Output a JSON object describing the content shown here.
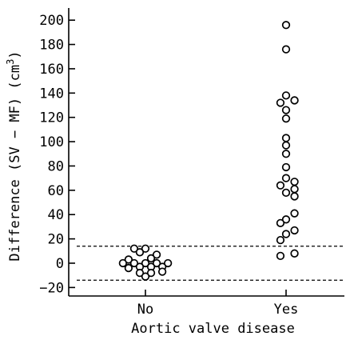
{
  "chart_data": {
    "type": "scatter",
    "title": "",
    "xlabel": "Aortic valve disease",
    "ylabel": "Difference (SV − MF) (cm",
    "ylabel_superscript": "3",
    "ylabel_suffix": ")",
    "categories": [
      "No",
      "Yes"
    ],
    "ylim": [
      -27,
      210
    ],
    "yticks": [
      -20,
      0,
      20,
      40,
      60,
      80,
      100,
      120,
      140,
      160,
      180,
      200
    ],
    "ytick_labels": [
      "−20",
      "0",
      "20",
      "40",
      "60",
      "80",
      "100",
      "120",
      "140",
      "160",
      "180",
      "200"
    ],
    "reference_lines": [
      14,
      -14
    ],
    "grid": false,
    "legend": "none",
    "series": [
      {
        "category": "No",
        "points": [
          {
            "offset": -0.08,
            "value": 12
          },
          {
            "offset": 0.0,
            "value": 12
          },
          {
            "offset": -0.04,
            "value": 9
          },
          {
            "offset": 0.08,
            "value": 7
          },
          {
            "offset": -0.12,
            "value": 3
          },
          {
            "offset": 0.04,
            "value": 4
          },
          {
            "offset": -0.16,
            "value": 0
          },
          {
            "offset": -0.08,
            "value": 0
          },
          {
            "offset": 0.0,
            "value": 0
          },
          {
            "offset": 0.08,
            "value": 0
          },
          {
            "offset": 0.16,
            "value": 0
          },
          {
            "offset": -0.04,
            "value": -3
          },
          {
            "offset": 0.04,
            "value": -3
          },
          {
            "offset": 0.12,
            "value": -3
          },
          {
            "offset": -0.12,
            "value": -4
          },
          {
            "offset": -0.04,
            "value": -8
          },
          {
            "offset": 0.04,
            "value": -8
          },
          {
            "offset": 0.12,
            "value": -7
          },
          {
            "offset": 0.0,
            "value": -11
          }
        ]
      },
      {
        "category": "Yes",
        "points": [
          {
            "offset": 0.0,
            "value": 196
          },
          {
            "offset": 0.0,
            "value": 176
          },
          {
            "offset": 0.0,
            "value": 138
          },
          {
            "offset": 0.06,
            "value": 134
          },
          {
            "offset": -0.04,
            "value": 132
          },
          {
            "offset": 0.0,
            "value": 126
          },
          {
            "offset": 0.0,
            "value": 119
          },
          {
            "offset": 0.0,
            "value": 103
          },
          {
            "offset": 0.0,
            "value": 97
          },
          {
            "offset": 0.0,
            "value": 90
          },
          {
            "offset": 0.0,
            "value": 79
          },
          {
            "offset": 0.0,
            "value": 70
          },
          {
            "offset": 0.06,
            "value": 67
          },
          {
            "offset": -0.04,
            "value": 64
          },
          {
            "offset": 0.06,
            "value": 61
          },
          {
            "offset": 0.0,
            "value": 58
          },
          {
            "offset": 0.06,
            "value": 55
          },
          {
            "offset": 0.06,
            "value": 41
          },
          {
            "offset": 0.0,
            "value": 36
          },
          {
            "offset": -0.04,
            "value": 33
          },
          {
            "offset": 0.06,
            "value": 27
          },
          {
            "offset": 0.0,
            "value": 24
          },
          {
            "offset": -0.04,
            "value": 19
          },
          {
            "offset": 0.06,
            "value": 8
          },
          {
            "offset": -0.04,
            "value": 6
          }
        ]
      }
    ]
  }
}
